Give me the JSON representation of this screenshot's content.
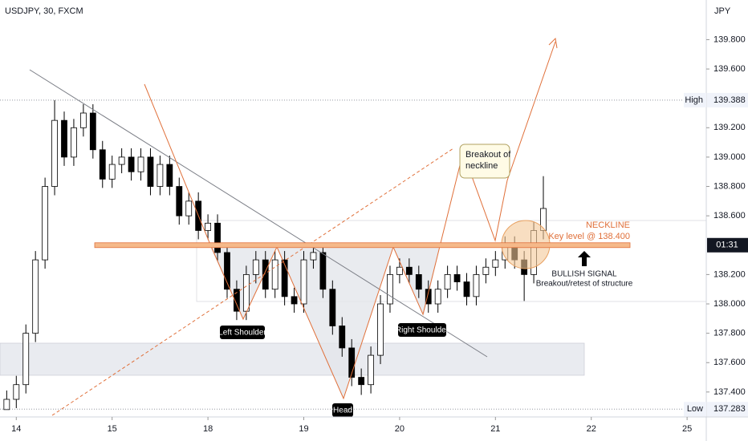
{
  "chart_data": {
    "type": "candlestick",
    "title": "USDJPY, 30, FXCM",
    "y_axis_label": "JPY",
    "up_color": "#ffffff",
    "down_color": "#000000",
    "xlim": [
      -0.17,
      7.2
    ],
    "ylim": [
      137.23,
      140.07
    ],
    "xticks": [
      {
        "value": 0,
        "label": "14"
      },
      {
        "value": 1,
        "label": "15"
      },
      {
        "value": 2,
        "label": "18"
      },
      {
        "value": 3,
        "label": "19"
      },
      {
        "value": 4,
        "label": "20"
      },
      {
        "value": 5,
        "label": "21"
      },
      {
        "value": 6,
        "label": "22"
      },
      {
        "value": 7,
        "label": "25"
      }
    ],
    "yticks": [
      {
        "value": 137.4,
        "label": "137.400"
      },
      {
        "value": 137.6,
        "label": "137.600"
      },
      {
        "value": 137.8,
        "label": "137.800"
      },
      {
        "value": 138.0,
        "label": "138.000"
      },
      {
        "value": 138.2,
        "label": "138.200"
      },
      {
        "value": 138.6,
        "label": "138.600"
      },
      {
        "value": 138.8,
        "label": "138.800"
      },
      {
        "value": 139.0,
        "label": "139.000"
      },
      {
        "value": 139.2,
        "label": "139.200"
      },
      {
        "value": 139.6,
        "label": "139.600"
      },
      {
        "value": 139.8,
        "label": "139.800"
      }
    ],
    "candles": {
      "x": [
        -0.1,
        0.0,
        0.1,
        0.2,
        0.3,
        0.4,
        0.5,
        0.6,
        0.7,
        0.8,
        0.9,
        1.0,
        1.1,
        1.2,
        1.3,
        1.4,
        1.5,
        1.6,
        1.7,
        1.8,
        1.9,
        2.0,
        2.1,
        2.2,
        2.3,
        2.4,
        2.5,
        2.6,
        2.7,
        2.8,
        2.9,
        3.0,
        3.1,
        3.2,
        3.3,
        3.4,
        3.5,
        3.6,
        3.7,
        3.8,
        3.9,
        4.0,
        4.1,
        4.2,
        4.3,
        4.4,
        4.5,
        4.6,
        4.7,
        4.8,
        4.9,
        5.0,
        5.1,
        5.2,
        5.3,
        5.4,
        5.5
      ],
      "open": [
        137.28,
        137.35,
        137.45,
        137.8,
        138.3,
        138.8,
        139.25,
        139.0,
        139.2,
        139.3,
        139.05,
        138.85,
        138.95,
        139.0,
        138.9,
        139.0,
        138.8,
        138.95,
        138.8,
        138.6,
        138.7,
        138.5,
        138.55,
        138.35,
        138.1,
        137.95,
        138.2,
        138.3,
        138.1,
        138.3,
        138.05,
        138.0,
        138.3,
        138.35,
        138.1,
        137.85,
        137.7,
        137.5,
        137.45,
        137.65,
        138.0,
        138.2,
        138.25,
        138.2,
        138.1,
        138.0,
        138.1,
        138.2,
        138.15,
        138.05,
        138.2,
        138.25,
        138.3,
        138.4,
        138.3,
        138.2,
        138.5
      ],
      "high": [
        137.41,
        137.51,
        137.86,
        138.36,
        138.86,
        139.388,
        139.31,
        139.26,
        139.36,
        139.36,
        139.11,
        139.01,
        139.06,
        139.06,
        139.06,
        139.06,
        139.01,
        139.01,
        138.86,
        138.76,
        138.76,
        138.61,
        138.61,
        138.41,
        138.16,
        138.26,
        138.36,
        138.36,
        138.36,
        138.36,
        138.11,
        138.36,
        138.41,
        138.41,
        138.16,
        137.91,
        137.76,
        137.56,
        137.71,
        138.06,
        138.26,
        138.31,
        138.31,
        138.26,
        138.16,
        138.16,
        138.26,
        138.26,
        138.21,
        138.26,
        138.31,
        138.36,
        138.46,
        138.46,
        138.36,
        138.56,
        138.87
      ],
      "low": [
        137.283,
        137.29,
        137.39,
        137.74,
        138.24,
        138.74,
        138.94,
        138.94,
        139.14,
        138.99,
        138.79,
        138.79,
        138.89,
        138.84,
        138.84,
        138.74,
        138.74,
        138.74,
        138.54,
        138.54,
        138.44,
        138.44,
        138.29,
        138.04,
        137.89,
        137.89,
        138.14,
        138.04,
        138.04,
        137.99,
        137.94,
        137.94,
        138.24,
        138.04,
        137.79,
        137.64,
        137.44,
        137.38,
        137.39,
        137.59,
        137.94,
        138.14,
        138.14,
        138.04,
        137.94,
        137.94,
        138.04,
        138.09,
        137.99,
        137.99,
        138.14,
        138.19,
        138.24,
        138.24,
        138.02,
        138.14,
        138.44
      ],
      "close": [
        137.35,
        137.45,
        137.8,
        138.3,
        138.8,
        139.25,
        139.0,
        139.2,
        139.3,
        139.05,
        138.85,
        138.95,
        139.0,
        138.9,
        139.0,
        138.8,
        138.95,
        138.8,
        138.6,
        138.7,
        138.5,
        138.55,
        138.35,
        138.1,
        137.95,
        138.2,
        138.3,
        138.1,
        138.3,
        138.05,
        138.0,
        138.3,
        138.35,
        138.1,
        137.85,
        137.7,
        137.5,
        137.45,
        137.65,
        138.0,
        138.2,
        138.25,
        138.2,
        138.1,
        138.0,
        138.1,
        138.2,
        138.15,
        138.05,
        138.2,
        138.25,
        138.3,
        138.4,
        138.3,
        138.2,
        138.5,
        138.65
      ]
    },
    "levels": {
      "high": {
        "label": "High",
        "value": 139.388
      },
      "low": {
        "label": "Low",
        "value": 137.283
      },
      "neckline": 138.4,
      "countdown": "01:31"
    },
    "annotations": {
      "left_shoulder": "Left Shoulder",
      "head": "Head",
      "right_shoulder": "Right Shoulder",
      "breakout": [
        "Breakout of",
        "neckline"
      ],
      "neckline": "NECKLINE",
      "key_level": "Key level @ 138.400",
      "bullish": "BULLISH SIGNAL",
      "retest": "Breakout/retest of structure"
    }
  }
}
